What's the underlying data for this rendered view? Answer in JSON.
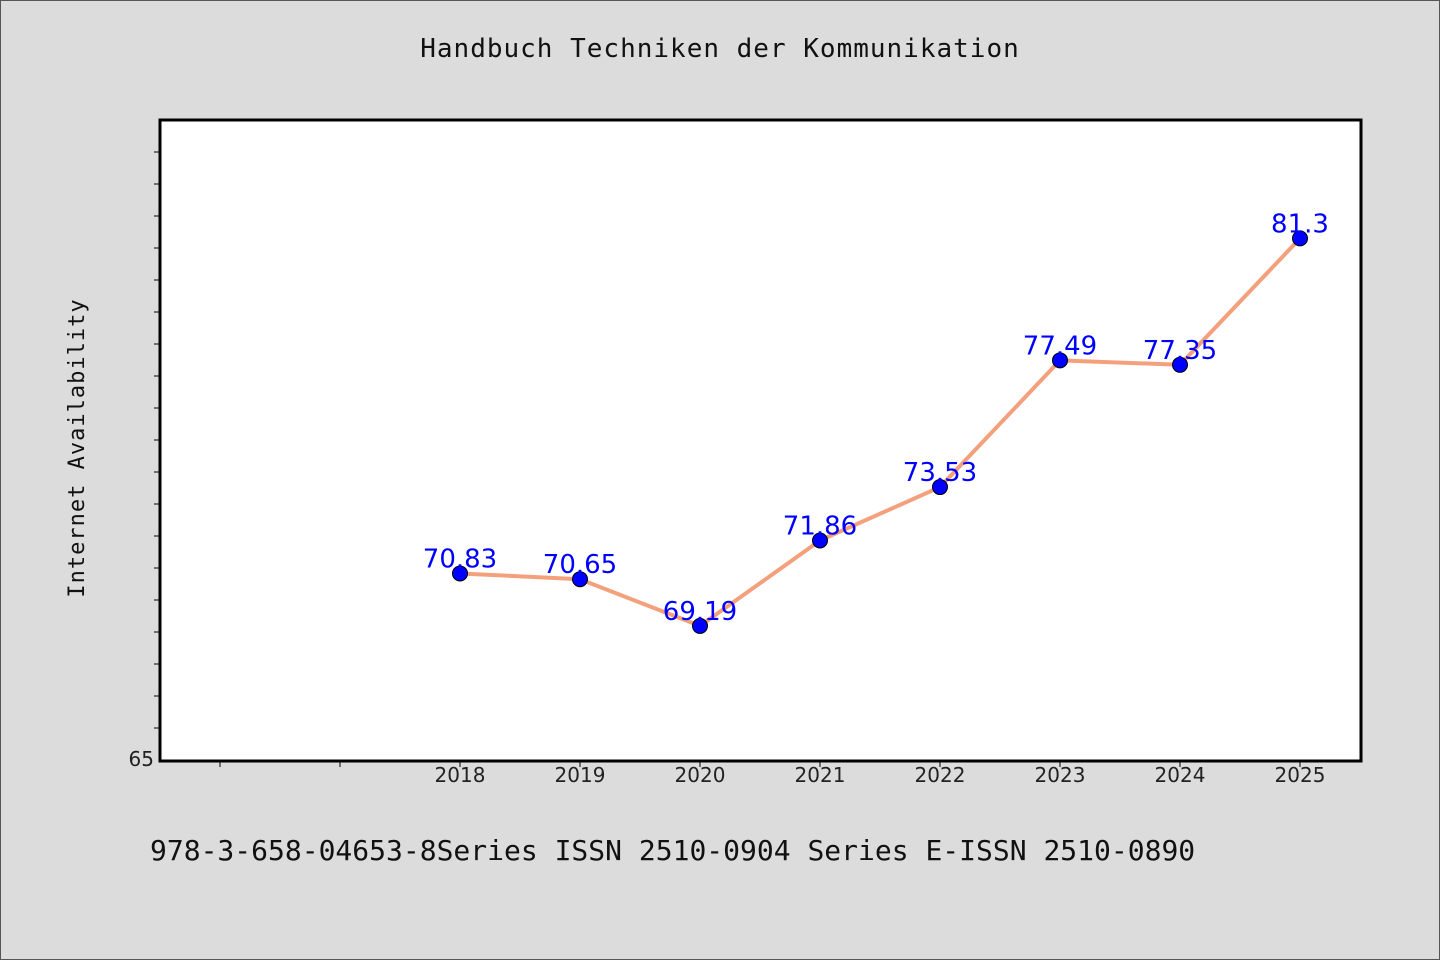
{
  "title": "Handbuch Techniken der Kommunikation",
  "footer": "978-3-658-04653-8Series ISSN 2510-0904 Series E-ISSN 2510-0890",
  "colors": {
    "background": "#dcdcdc",
    "plot_background": "#ffffff",
    "line": "#f4a07c",
    "marker": "#0000ff",
    "data_label": "#0000ff"
  },
  "chart_data": {
    "type": "line",
    "title": "Handbuch Techniken der Kommunikation",
    "xlabel": "",
    "ylabel": "Internet Availability",
    "categories": [
      "2018",
      "2019",
      "2020",
      "2021",
      "2022",
      "2023",
      "2024",
      "2025"
    ],
    "series": [
      {
        "values": [
          70.83,
          70.65,
          69.19,
          71.86,
          73.53,
          77.49,
          77.35,
          81.3
        ],
        "labels": [
          "70.83",
          "70.65",
          "69.19",
          "71.86",
          "73.53",
          "77.49",
          "77.35",
          "81.3"
        ]
      }
    ],
    "ylim": [
      65,
      85
    ],
    "y_tick_labels": [
      "65"
    ],
    "x_range": [
      2015.5,
      2025.5
    ],
    "grid": false,
    "legend": "none"
  }
}
